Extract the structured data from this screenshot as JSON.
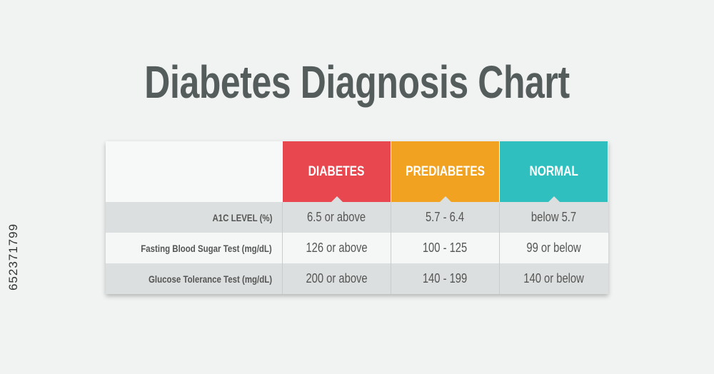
{
  "header": {
    "title": "Diabetes Diagnosis Chart"
  },
  "table": {
    "columns": [
      "DIABETES",
      "PREDIABETES",
      "NORMAL"
    ],
    "rows": [
      [
        "A1C LEVEL (%)",
        "6.5 or above",
        "5.7 - 6.4",
        "below 5.7"
      ],
      [
        "Fasting Blood Sugar Test (mg/dL)",
        "126 or above",
        "100 - 125",
        "99 or below"
      ],
      [
        "Glucose Tolerance Test (mg/dL)",
        "200 or above",
        "140 - 199",
        "140 or below"
      ]
    ]
  },
  "side_text": "652371799"
}
